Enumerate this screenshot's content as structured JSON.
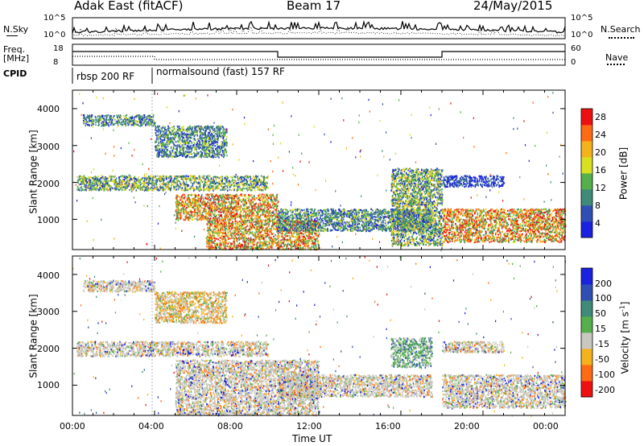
{
  "header": {
    "station": "Adak East (fitACF)",
    "beam": "Beam 17",
    "date": "24/May/2015"
  },
  "panels": {
    "nsky": {
      "label": "N.Sky",
      "ticks": [
        "10^5",
        "10^0"
      ]
    },
    "nsearch": {
      "label": "N.Search",
      "ticks": [
        "10^5",
        "10^0"
      ]
    },
    "freq": {
      "label_line1": "Freq.",
      "label_line2": "[MHz]",
      "ticks": [
        "18",
        "8"
      ]
    },
    "nave": {
      "label": "Nave",
      "ticks": [
        "60",
        "0"
      ]
    },
    "cpid": {
      "label": "CPID",
      "segments": [
        {
          "name": "rbsp 200 RF",
          "start_hour": 0.0,
          "end_hour": 4.0
        },
        {
          "name": "normalsound (fast) 157 RF",
          "start_hour": 4.0,
          "end_hour": 24.0
        }
      ]
    }
  },
  "chart_data": [
    {
      "type": "heatmap",
      "title": "",
      "xlabel": "Time UT",
      "ylabel": "Slant Range [km]",
      "xlim_hours": [
        0,
        24
      ],
      "ylim_km": [
        180,
        4500
      ],
      "yticks": [
        1000,
        2000,
        3000,
        4000
      ],
      "colorbar": {
        "label": "Power [dB]",
        "ticks": [
          4,
          8,
          12,
          16,
          20,
          24,
          28
        ],
        "colors": [
          "#1a22e0",
          "#2f4fb4",
          "#3f8a78",
          "#55b04c",
          "#d8e020",
          "#f4b21c",
          "#ff6a14",
          "#ee1010"
        ]
      },
      "echo_bands": [
        {
          "t0": 0.5,
          "t1": 4.0,
          "r0": 3550,
          "r1": 3850,
          "level": "low-mid"
        },
        {
          "t0": 4.0,
          "t1": 7.5,
          "r0": 2700,
          "r1": 3550,
          "level": "low-mid"
        },
        {
          "t0": 0.2,
          "t1": 9.5,
          "r0": 1800,
          "r1": 2200,
          "level": "mid"
        },
        {
          "t0": 5.0,
          "t1": 10.0,
          "r0": 1000,
          "r1": 1700,
          "level": "high"
        },
        {
          "t0": 6.5,
          "t1": 12.0,
          "r0": 200,
          "r1": 1000,
          "level": "high"
        },
        {
          "t0": 10.0,
          "t1": 17.5,
          "r0": 700,
          "r1": 1300,
          "level": "low-mid"
        },
        {
          "t0": 15.5,
          "t1": 18.0,
          "r0": 300,
          "r1": 2400,
          "level": "mid"
        },
        {
          "t0": 18.0,
          "t1": 24.0,
          "r0": 400,
          "r1": 1300,
          "level": "high"
        },
        {
          "t0": 18.0,
          "t1": 21.0,
          "r0": 1900,
          "r1": 2200,
          "level": "low"
        }
      ]
    },
    {
      "type": "heatmap",
      "title": "",
      "xlabel": "Time UT",
      "ylabel": "Slant Range [km]",
      "xlim_hours": [
        0,
        24
      ],
      "ylim_km": [
        180,
        4500
      ],
      "xticks": [
        "00:00",
        "04:00",
        "08:00",
        "12:00",
        "16:00",
        "20:00",
        "00:00"
      ],
      "yticks": [
        1000,
        2000,
        3000,
        4000
      ],
      "colorbar": {
        "label_main": "Velocity [m s",
        "label_exp": "-1",
        "label_close": "]",
        "ticks": [
          200,
          100,
          50,
          15,
          -15,
          -50,
          -100,
          -200
        ],
        "colors": [
          "#1a22e0",
          "#2f4fb4",
          "#3f8a78",
          "#55b04c",
          "#c8c8c0",
          "#f4b21c",
          "#ff6a14",
          "#ee1010"
        ]
      },
      "echo_bands": [
        {
          "t0": 0.5,
          "t1": 4.0,
          "r0": 3550,
          "r1": 3850,
          "level": "ground"
        },
        {
          "t0": 4.0,
          "t1": 7.5,
          "r0": 2700,
          "r1": 3550,
          "level": "negative"
        },
        {
          "t0": 0.2,
          "t1": 9.5,
          "r0": 1800,
          "r1": 2200,
          "level": "ground"
        },
        {
          "t0": 5.0,
          "t1": 12.0,
          "r0": 200,
          "r1": 1700,
          "level": "ground"
        },
        {
          "t0": 10.0,
          "t1": 17.5,
          "r0": 700,
          "r1": 1300,
          "level": "ground"
        },
        {
          "t0": 15.5,
          "t1": 17.5,
          "r0": 1500,
          "r1": 2300,
          "level": "positive"
        },
        {
          "t0": 18.0,
          "t1": 24.0,
          "r0": 400,
          "r1": 1300,
          "level": "ground"
        },
        {
          "t0": 18.0,
          "t1": 21.0,
          "r0": 1900,
          "r1": 2200,
          "level": "ground"
        }
      ]
    }
  ]
}
